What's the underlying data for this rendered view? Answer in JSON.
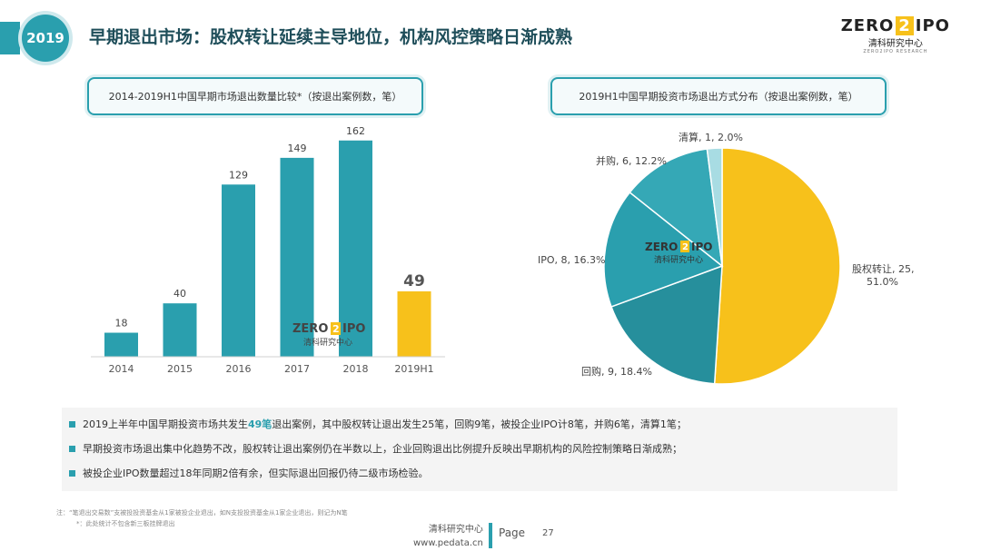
{
  "header": {
    "year": "2019",
    "title": "早期退出市场：股权转让延续主导地位，机构风控策略日渐成熟",
    "logo_top_left": "ZERO",
    "logo_box": "2",
    "logo_top_right": "IPO",
    "logo_cn": "清科研究中心",
    "logo_en": "ZERO2IPO RESEARCH"
  },
  "watermark": {
    "top_left": "ZERO",
    "box": "2",
    "top_right": "IPO",
    "cn": "清科研究中心"
  },
  "left_panel_title": "2014-2019H1中国早期市场退出数量比较*（按退出案例数，笔）",
  "right_panel_title": "2019H1中国早期投资市场退出方式分布（按退出案例数，笔）",
  "chart_data": [
    {
      "type": "bar",
      "categories": [
        "2014",
        "2015",
        "2016",
        "2017",
        "2018",
        "2019H1"
      ],
      "values": [
        18,
        40,
        129,
        149,
        162,
        49
      ],
      "labels": [
        "18",
        "40",
        "129",
        "149",
        "162",
        "49"
      ],
      "colors": [
        "#2a9fae",
        "#2a9fae",
        "#2a9fae",
        "#2a9fae",
        "#2a9fae",
        "#f7c11b"
      ],
      "ylim": [
        0,
        170
      ]
    },
    {
      "type": "pie",
      "slices": [
        {
          "name": "股权转让",
          "value": 25,
          "percent": 51.0,
          "label1": "股权转让, 25,",
          "label2": "51.0%",
          "color": "#f7c11b"
        },
        {
          "name": "回购",
          "value": 9,
          "percent": 18.4,
          "label1": "回购, 9, 18.4%",
          "label2": "",
          "color": "#268f9c"
        },
        {
          "name": "IPO",
          "value": 8,
          "percent": 16.3,
          "label1": "IPO, 8, 16.3%",
          "label2": "",
          "color": "#2a9fae"
        },
        {
          "name": "并购",
          "value": 6,
          "percent": 12.2,
          "label1": "并购, 6, 12.2%",
          "label2": "",
          "color": "#35a8b6"
        },
        {
          "name": "清算",
          "value": 1,
          "percent": 2.0,
          "label1": "清算, 1, 2.0%",
          "label2": "",
          "color": "#a8dce3"
        }
      ]
    }
  ],
  "notes": [
    {
      "pre": "2019上半年中国早期投资市场共发生",
      "hl": "49笔",
      "post": "退出案例，其中股权转让退出发生25笔，回购9笔，被投企业IPO计8笔，并购6笔，清算1笔；"
    },
    {
      "pre": "早期投资市场退出集中化趋势不改，股权转让退出案例仍在半数以上，企业回购退出比例提升反映出早期机构的风险控制策略日渐成熟；",
      "hl": "",
      "post": ""
    },
    {
      "pre": "被投企业IPO数量超过18年同期2倍有余，但实际退出回报仍待二级市场检验。",
      "hl": "",
      "post": ""
    }
  ],
  "footnotes": [
    "注：“笔退出交易数”支被投投资基金从1家被投企业退出，如N支投投资基金从1家企业退出，则记为N笔",
    "*：此处统计不包含新三板挂牌退出"
  ],
  "footer": {
    "org": "清科研究中心",
    "url": "www.pedata.cn",
    "page_label": "Page",
    "page_number": "27"
  }
}
